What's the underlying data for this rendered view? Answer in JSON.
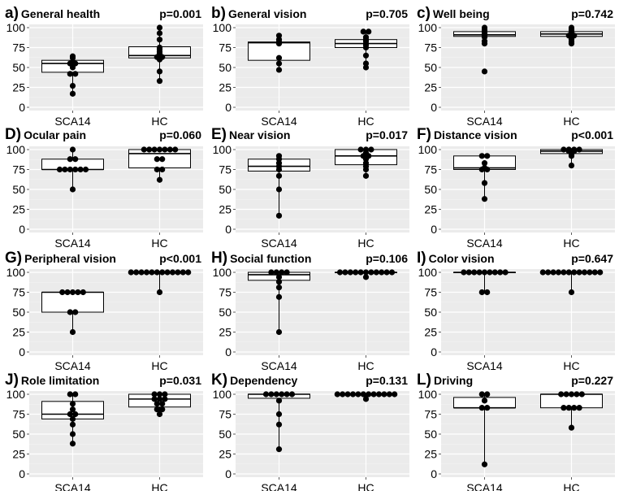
{
  "chart_data": [
    {
      "type": "boxplot",
      "letter": "a)",
      "title": "General health",
      "pvalue": "p=0.001",
      "categories": [
        "SCA14",
        "HC"
      ],
      "ylim": [
        0,
        100
      ],
      "yticks": [
        0,
        25,
        50,
        75,
        100
      ],
      "groups": [
        {
          "name": "SCA14",
          "box": {
            "q1": 44,
            "median": 55,
            "q3": 59,
            "wlo": 17,
            "whi": 64
          },
          "points": [
            64,
            62,
            57,
            55,
            55,
            53,
            50,
            42,
            42,
            27,
            17
          ]
        },
        {
          "name": "HC",
          "box": {
            "q1": 62,
            "median": 65,
            "q3": 76,
            "wlo": 33,
            "whi": 100
          },
          "points": [
            100,
            93,
            85,
            75,
            73,
            70,
            68,
            67,
            65,
            63,
            63,
            60,
            45,
            33
          ]
        }
      ]
    },
    {
      "type": "boxplot",
      "letter": "b)",
      "title": "General vision",
      "pvalue": "p=0.705",
      "categories": [
        "SCA14",
        "HC"
      ],
      "ylim": [
        0,
        100
      ],
      "yticks": [
        0,
        25,
        50,
        75,
        100
      ],
      "groups": [
        {
          "name": "SCA14",
          "box": {
            "q1": 59,
            "median": 81,
            "q3": 82,
            "wlo": 46,
            "whi": 90
          },
          "points": [
            90,
            85,
            82,
            81,
            80,
            62,
            55,
            47
          ]
        },
        {
          "name": "HC",
          "box": {
            "q1": 75,
            "median": 80,
            "q3": 85,
            "wlo": 50,
            "whi": 95
          },
          "points": [
            95,
            95,
            88,
            85,
            83,
            80,
            78,
            75,
            65,
            55,
            50
          ]
        }
      ]
    },
    {
      "type": "boxplot",
      "letter": "c)",
      "title": "Well being",
      "pvalue": "p=0.742",
      "categories": [
        "SCA14",
        "HC"
      ],
      "ylim": [
        0,
        100
      ],
      "yticks": [
        0,
        25,
        50,
        75,
        100
      ],
      "groups": [
        {
          "name": "SCA14",
          "box": {
            "q1": 89,
            "median": 91,
            "q3": 95,
            "wlo": 80,
            "whi": 100
          },
          "points": [
            100,
            97,
            95,
            93,
            92,
            91,
            90,
            88,
            83,
            80,
            45
          ]
        },
        {
          "name": "HC",
          "box": {
            "q1": 89,
            "median": 92,
            "q3": 95,
            "wlo": 80,
            "whi": 100
          },
          "points": [
            100,
            98,
            96,
            94,
            93,
            92,
            91,
            90,
            90,
            88,
            87,
            85,
            82,
            80
          ]
        }
      ]
    },
    {
      "type": "boxplot",
      "letter": "D)",
      "title": "Ocular pain",
      "pvalue": "p=0.060",
      "categories": [
        "SCA14",
        "HC"
      ],
      "ylim": [
        0,
        100
      ],
      "yticks": [
        0,
        25,
        50,
        75,
        100
      ],
      "groups": [
        {
          "name": "SCA14",
          "box": {
            "q1": 75,
            "median": 75,
            "q3": 88,
            "wlo": 50,
            "whi": 100
          },
          "points": [
            100,
            88,
            88,
            75,
            75,
            75,
            75,
            75,
            75,
            50
          ]
        },
        {
          "name": "HC",
          "box": {
            "q1": 77,
            "median": 95,
            "q3": 100,
            "wlo": 62,
            "whi": 100
          },
          "points": [
            100,
            100,
            100,
            100,
            100,
            100,
            100,
            88,
            88,
            75,
            75,
            62
          ]
        }
      ]
    },
    {
      "type": "boxplot",
      "letter": "E)",
      "title": "Near vision",
      "pvalue": "p=0.017",
      "categories": [
        "SCA14",
        "HC"
      ],
      "ylim": [
        0,
        100
      ],
      "yticks": [
        0,
        25,
        50,
        75,
        100
      ],
      "groups": [
        {
          "name": "SCA14",
          "box": {
            "q1": 73,
            "median": 79,
            "q3": 88,
            "wlo": 17,
            "whi": 92
          },
          "points": [
            92,
            88,
            83,
            79,
            75,
            67,
            50,
            17
          ]
        },
        {
          "name": "HC",
          "box": {
            "q1": 81,
            "median": 92,
            "q3": 100,
            "wlo": 67,
            "whi": 100
          },
          "points": [
            100,
            100,
            100,
            96,
            92,
            92,
            88,
            83,
            79,
            75,
            67
          ]
        }
      ]
    },
    {
      "type": "boxplot",
      "letter": "F)",
      "title": "Distance vision",
      "pvalue": "p<0.001",
      "categories": [
        "SCA14",
        "HC"
      ],
      "ylim": [
        0,
        100
      ],
      "yticks": [
        0,
        25,
        50,
        75,
        100
      ],
      "groups": [
        {
          "name": "SCA14",
          "box": {
            "q1": 75,
            "median": 77,
            "q3": 92,
            "wlo": 38,
            "whi": 92
          },
          "points": [
            92,
            92,
            83,
            77,
            75,
            75,
            58,
            38
          ]
        },
        {
          "name": "HC",
          "box": {
            "q1": 95,
            "median": 98,
            "q3": 100,
            "wlo": 80,
            "whi": 100
          },
          "points": [
            100,
            100,
            100,
            100,
            98,
            98,
            96,
            95,
            93,
            92,
            80
          ]
        }
      ]
    },
    {
      "type": "boxplot",
      "letter": "G)",
      "title": "Peripheral vision",
      "pvalue": "p<0.001",
      "categories": [
        "SCA14",
        "HC"
      ],
      "ylim": [
        0,
        100
      ],
      "yticks": [
        0,
        25,
        50,
        75,
        100
      ],
      "groups": [
        {
          "name": "SCA14",
          "box": {
            "q1": 50,
            "median": 75,
            "q3": 75,
            "wlo": 25,
            "whi": 75
          },
          "points": [
            75,
            75,
            75,
            75,
            75,
            50,
            50,
            25
          ]
        },
        {
          "name": "HC",
          "box": {
            "q1": 100,
            "median": 100,
            "q3": 100,
            "wlo": 75,
            "whi": 100
          },
          "points": [
            100,
            100,
            100,
            100,
            100,
            100,
            100,
            100,
            100,
            100,
            100,
            100,
            75
          ]
        }
      ]
    },
    {
      "type": "boxplot",
      "letter": "H)",
      "title": "Social function",
      "pvalue": "p=0.106",
      "categories": [
        "SCA14",
        "HC"
      ],
      "ylim": [
        0,
        100
      ],
      "yticks": [
        0,
        25,
        50,
        75,
        100
      ],
      "groups": [
        {
          "name": "SCA14",
          "box": {
            "q1": 90,
            "median": 97,
            "q3": 100,
            "wlo": 25,
            "whi": 100
          },
          "points": [
            100,
            100,
            100,
            100,
            94,
            88,
            81,
            69,
            25
          ]
        },
        {
          "name": "HC",
          "box": {
            "q1": 100,
            "median": 100,
            "q3": 100,
            "wlo": 94,
            "whi": 100
          },
          "points": [
            100,
            100,
            100,
            100,
            100,
            100,
            100,
            100,
            100,
            100,
            100,
            94
          ]
        }
      ]
    },
    {
      "type": "boxplot",
      "letter": "I)",
      "title": "Color vision",
      "pvalue": "p=0.647",
      "categories": [
        "SCA14",
        "HC"
      ],
      "ylim": [
        0,
        100
      ],
      "yticks": [
        0,
        25,
        50,
        75,
        100
      ],
      "groups": [
        {
          "name": "SCA14",
          "box": {
            "q1": 100,
            "median": 100,
            "q3": 100,
            "wlo": 75,
            "whi": 100
          },
          "points": [
            100,
            100,
            100,
            100,
            100,
            100,
            100,
            100,
            100,
            75,
            75
          ]
        },
        {
          "name": "HC",
          "box": {
            "q1": 100,
            "median": 100,
            "q3": 100,
            "wlo": 75,
            "whi": 100
          },
          "points": [
            100,
            100,
            100,
            100,
            100,
            100,
            100,
            100,
            100,
            100,
            100,
            100,
            75
          ]
        }
      ]
    },
    {
      "type": "boxplot",
      "letter": "J)",
      "title": "Role limitation",
      "pvalue": "p=0.031",
      "categories": [
        "SCA14",
        "HC"
      ],
      "ylim": [
        0,
        100
      ],
      "yticks": [
        0,
        25,
        50,
        75,
        100
      ],
      "groups": [
        {
          "name": "SCA14",
          "box": {
            "q1": 69,
            "median": 75,
            "q3": 91,
            "wlo": 38,
            "whi": 100
          },
          "points": [
            100,
            100,
            88,
            81,
            75,
            75,
            69,
            62,
            50,
            38
          ]
        },
        {
          "name": "HC",
          "box": {
            "q1": 84,
            "median": 94,
            "q3": 100,
            "wlo": 75,
            "whi": 100
          },
          "points": [
            100,
            100,
            100,
            94,
            94,
            94,
            88,
            88,
            81,
            81,
            75
          ]
        }
      ]
    },
    {
      "type": "boxplot",
      "letter": "K)",
      "title": "Dependency",
      "pvalue": "p=0.131",
      "categories": [
        "SCA14",
        "HC"
      ],
      "ylim": [
        0,
        100
      ],
      "yticks": [
        0,
        25,
        50,
        75,
        100
      ],
      "groups": [
        {
          "name": "SCA14",
          "box": {
            "q1": 95,
            "median": 100,
            "q3": 100,
            "wlo": 31,
            "whi": 100
          },
          "points": [
            100,
            100,
            100,
            100,
            100,
            100,
            92,
            75,
            62,
            31
          ]
        },
        {
          "name": "HC",
          "box": {
            "q1": 100,
            "median": 100,
            "q3": 100,
            "wlo": 94,
            "whi": 100
          },
          "points": [
            100,
            100,
            100,
            100,
            100,
            100,
            100,
            100,
            100,
            100,
            100,
            100,
            94
          ]
        }
      ]
    },
    {
      "type": "boxplot",
      "letter": "L)",
      "title": "Driving",
      "pvalue": "p=0.227",
      "categories": [
        "SCA14",
        "HC"
      ],
      "ylim": [
        0,
        100
      ],
      "yticks": [
        0,
        25,
        50,
        75,
        100
      ],
      "groups": [
        {
          "name": "SCA14",
          "box": {
            "q1": 83,
            "median": 83,
            "q3": 96,
            "wlo": 12,
            "whi": 100
          },
          "points": [
            100,
            100,
            92,
            83,
            83,
            12
          ]
        },
        {
          "name": "HC",
          "box": {
            "q1": 83,
            "median": 100,
            "q3": 100,
            "wlo": 58,
            "whi": 100
          },
          "points": [
            100,
            100,
            100,
            100,
            100,
            83,
            83,
            83,
            83,
            58
          ]
        }
      ]
    }
  ]
}
